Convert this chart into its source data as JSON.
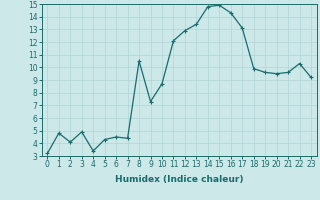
{
  "x": [
    0,
    1,
    2,
    3,
    4,
    5,
    6,
    7,
    8,
    9,
    10,
    11,
    12,
    13,
    14,
    15,
    16,
    17,
    18,
    19,
    20,
    21,
    22,
    23
  ],
  "y": [
    3.2,
    4.8,
    4.1,
    4.9,
    3.4,
    4.3,
    4.5,
    4.4,
    10.5,
    7.3,
    8.7,
    12.1,
    12.9,
    13.4,
    14.8,
    14.9,
    14.3,
    13.1,
    9.9,
    9.6,
    9.5,
    9.6,
    10.3,
    9.2
  ],
  "line_color": "#1a6b6b",
  "marker": "+",
  "marker_size": 3,
  "marker_lw": 0.8,
  "line_width": 0.9,
  "bg_color": "#cce8e8",
  "grid_color": "#b0d4d4",
  "xlabel": "Humidex (Indice chaleur)",
  "ylim": [
    3,
    15
  ],
  "xlim_min": -0.5,
  "xlim_max": 23.5,
  "yticks": [
    3,
    4,
    5,
    6,
    7,
    8,
    9,
    10,
    11,
    12,
    13,
    14,
    15
  ],
  "xticks": [
    0,
    1,
    2,
    3,
    4,
    5,
    6,
    7,
    8,
    9,
    10,
    11,
    12,
    13,
    14,
    15,
    16,
    17,
    18,
    19,
    20,
    21,
    22,
    23
  ],
  "tick_fontsize": 5.5,
  "xlabel_fontsize": 6.5,
  "tick_color": "#1a6b6b",
  "spine_color": "#1a6b6b"
}
